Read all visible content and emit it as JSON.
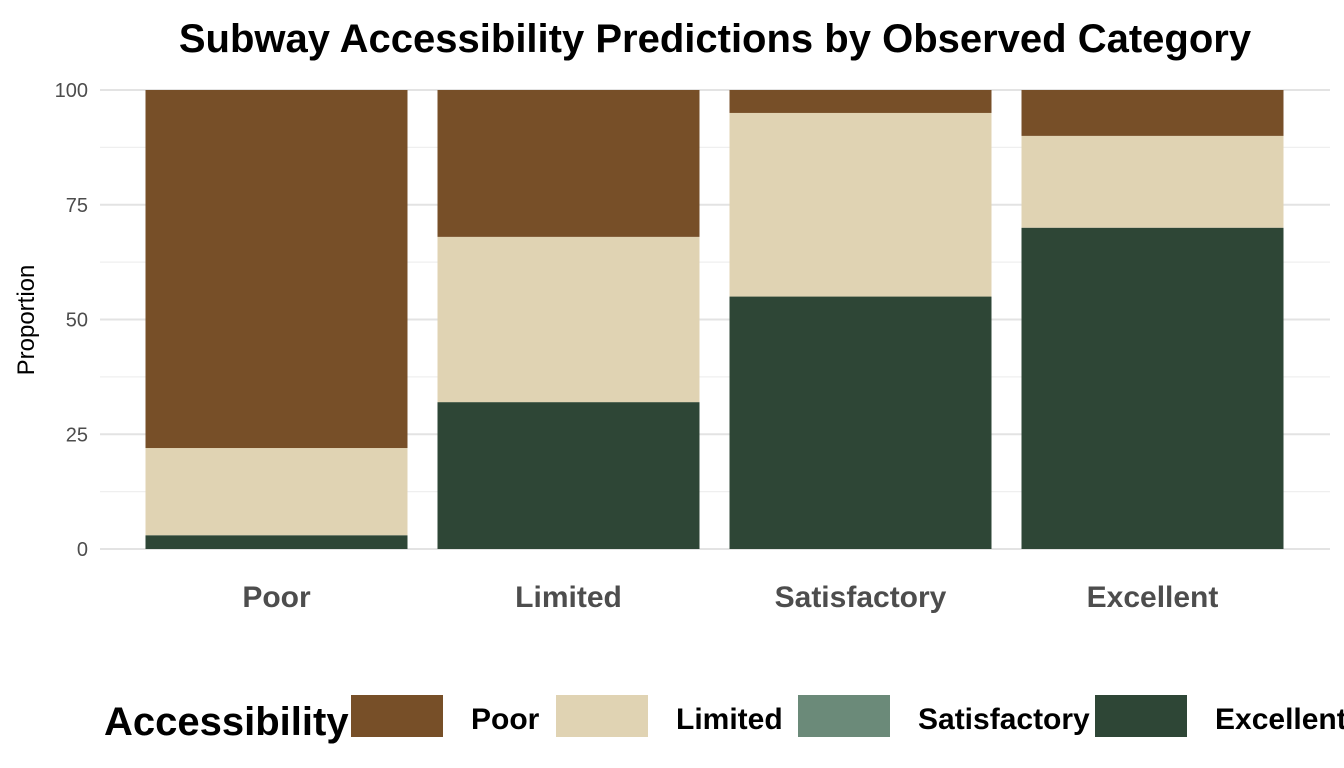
{
  "chart_data": {
    "type": "bar",
    "stacked": true,
    "title": "Subway Accessibility Predictions by Observed Category",
    "xlabel": "",
    "ylabel": "Proportion",
    "ylim": [
      0,
      100
    ],
    "yticks": [
      0,
      25,
      50,
      75,
      100
    ],
    "grid": true,
    "categories": [
      "Poor",
      "Limited",
      "Satisfactory",
      "Excellent"
    ],
    "series": [
      {
        "name": "Excellent",
        "color": "#2e4636",
        "values": [
          3,
          32,
          55,
          70
        ]
      },
      {
        "name": "Satisfactory",
        "color": "#6b8a79",
        "values": [
          0,
          0,
          0,
          0
        ]
      },
      {
        "name": "Limited",
        "color": "#e0d3b3",
        "values": [
          19,
          36,
          40,
          20
        ]
      },
      {
        "name": "Poor",
        "color": "#774f28",
        "values": [
          78,
          32,
          5,
          10
        ]
      }
    ],
    "legend": {
      "title": "Accessibility:",
      "position": "bottom",
      "items": [
        {
          "label": "Poor",
          "color": "#774f28"
        },
        {
          "label": "Limited",
          "color": "#e0d3b3"
        },
        {
          "label": "Satisfactory",
          "color": "#6b8a79"
        },
        {
          "label": "Excellent",
          "color": "#2e4636"
        }
      ]
    }
  }
}
